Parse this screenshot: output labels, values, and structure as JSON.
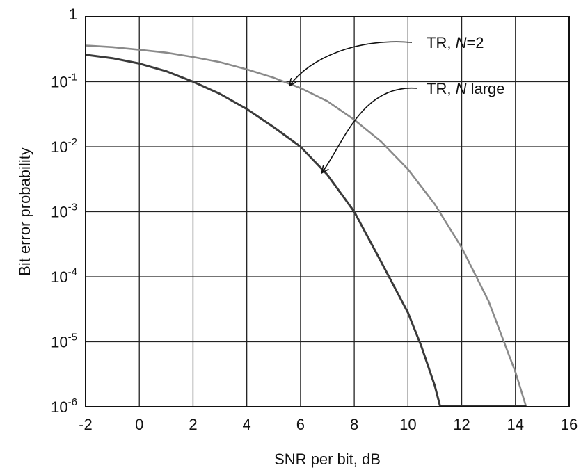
{
  "chart_data": {
    "type": "line",
    "title": "",
    "xlabel": "SNR per bit, dB",
    "ylabel": "Bit error probability",
    "xlim": [
      -2,
      16
    ],
    "ylim": [
      1e-06,
      1
    ],
    "yscale": "log",
    "grid": true,
    "x_ticks": [
      -2,
      0,
      2,
      4,
      6,
      8,
      10,
      12,
      14,
      16
    ],
    "x_tick_labels": [
      "-2",
      "0",
      "2",
      "4",
      "6",
      "8",
      "10",
      "12",
      "14",
      "16"
    ],
    "y_ticks": [
      1,
      0.1,
      0.01,
      0.001,
      0.0001,
      1e-05,
      1e-06
    ],
    "y_tick_labels": [
      {
        "base": "1",
        "exp": ""
      },
      {
        "base": "10",
        "exp": "-1"
      },
      {
        "base": "10",
        "exp": "-2"
      },
      {
        "base": "10",
        "exp": "-3"
      },
      {
        "base": "10",
        "exp": "-4"
      },
      {
        "base": "10",
        "exp": "-5"
      },
      {
        "base": "10",
        "exp": "-6"
      }
    ],
    "series": [
      {
        "name_parts": [
          "TR, ",
          "N",
          "=2"
        ],
        "color": "#8a8a8a",
        "x": [
          -2,
          -1,
          0,
          1,
          2,
          3,
          4,
          5,
          6,
          7,
          8,
          9,
          10,
          11,
          12,
          13,
          14,
          14.4
        ],
        "y": [
          0.36,
          0.34,
          0.31,
          0.28,
          0.24,
          0.2,
          0.155,
          0.115,
          0.08,
          0.05,
          0.026,
          0.012,
          0.0045,
          0.0013,
          0.00028,
          4.2e-05,
          3.4e-06,
          1e-06
        ]
      },
      {
        "name_parts": [
          "TR, ",
          "N",
          " large"
        ],
        "color": "#3a3a3a",
        "x": [
          -2,
          -1,
          0,
          1,
          2,
          3,
          4,
          5,
          6,
          7,
          8,
          9,
          10,
          10.5,
          11,
          11.2
        ],
        "y": [
          0.26,
          0.23,
          0.19,
          0.145,
          0.1,
          0.065,
          0.038,
          0.02,
          0.01,
          0.0037,
          0.001,
          0.00017,
          2.8e-05,
          8.5e-06,
          2.1e-06,
          1e-06
        ]
      }
    ],
    "flat_tail": [
      {
        "x": [
          11.2,
          14.4
        ],
        "y": [
          1e-06,
          1e-06
        ]
      }
    ],
    "annotations": [
      {
        "series_index": 0,
        "point": [
          5.6,
          0.088
        ]
      },
      {
        "series_index": 1,
        "point": [
          6.8,
          0.004
        ]
      }
    ]
  }
}
